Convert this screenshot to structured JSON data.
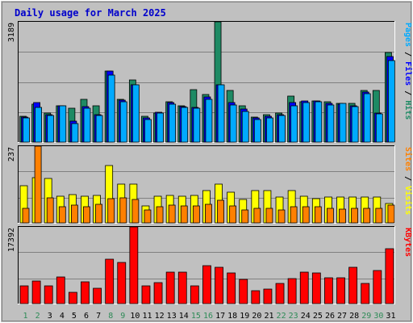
{
  "chart_data": {
    "type": "bar",
    "title": "Daily usage for March 2025",
    "colors": {
      "frame": "#c0c0c0",
      "plot_bg": "#c0c0c0",
      "title": "#0000cc",
      "weekday": "#000000",
      "weekend": "#2e8b57",
      "pages": "#00aaff",
      "files": "#0000ff",
      "hits": "#1e8a64",
      "sites": "#ff8000",
      "visits": "#ffff00",
      "kbytes": "#ff0000"
    },
    "categories": [
      "1",
      "2",
      "3",
      "4",
      "5",
      "6",
      "7",
      "8",
      "9",
      "10",
      "11",
      "12",
      "13",
      "14",
      "15",
      "16",
      "17",
      "18",
      "19",
      "20",
      "21",
      "22",
      "23",
      "24",
      "25",
      "26",
      "27",
      "28",
      "29",
      "30",
      "31"
    ],
    "weekend_days": [
      "1",
      "2",
      "8",
      "9",
      "15",
      "16",
      "22",
      "23",
      "29",
      "30"
    ],
    "panels": [
      {
        "id": "top",
        "ymax": 3189,
        "ymax_label": "3189",
        "axis_labels": [
          {
            "text": "Pages",
            "color": "#00aaff"
          },
          {
            "text": " / ",
            "color": "#000000"
          },
          {
            "text": "Files",
            "color": "#0000ff"
          },
          {
            "text": " / ",
            "color": "#000000"
          },
          {
            "text": "Hits",
            "color": "#1e8a64"
          }
        ],
        "series": [
          {
            "name": "Hits",
            "color": "#1e8a64",
            "values": [
              690,
              1010,
              780,
              970,
              900,
              1140,
              960,
              1880,
              1130,
              1640,
              680,
              780,
              1070,
              960,
              1400,
              1270,
              3189,
              1370,
              970,
              660,
              730,
              780,
              1230,
              1080,
              1100,
              1060,
              1020,
              1030,
              1360,
              1360,
              2370
            ]
          },
          {
            "name": "Files",
            "color": "#0000ff",
            "values": [
              660,
              1040,
              730,
              970,
              560,
              940,
              720,
              1880,
              1120,
              1520,
              640,
              790,
              1050,
              950,
              910,
              1190,
              1530,
              1050,
              870,
              640,
              690,
              730,
              1040,
              1100,
              1090,
              1030,
              1000,
              960,
              1330,
              780,
              2260
            ]
          },
          {
            "name": "Pages",
            "color": "#00aaff",
            "values": [
              640,
              910,
              710,
              960,
              500,
              900,
              700,
              1780,
              1080,
              1530,
              600,
              780,
              1010,
              910,
              890,
              1140,
              1510,
              980,
              810,
              600,
              650,
              700,
              960,
              1050,
              1060,
              980,
              1020,
              950,
              1280,
              750,
              2170
            ]
          }
        ]
      },
      {
        "id": "middle",
        "ymax": 237,
        "ymax_label": "237",
        "axis_labels": [
          {
            "text": "Sites",
            "color": "#ff8000"
          },
          {
            "text": " / ",
            "color": "#000000"
          },
          {
            "text": "Visits",
            "color": "#ffff00"
          }
        ],
        "series": [
          {
            "name": "Visits",
            "color": "#ffff00",
            "values": [
              115,
              140,
              136,
              82,
              88,
              83,
              86,
              178,
              120,
              120,
              52,
              82,
              85,
              82,
              85,
              100,
              120,
              96,
              72,
              100,
              100,
              80,
              100,
              82,
              76,
              80,
              80,
              80,
              80,
              80,
              60
            ]
          },
          {
            "name": "Sites",
            "color": "#ff8000",
            "values": [
              46,
              237,
              78,
              51,
              55,
              50,
              57,
              75,
              77,
              73,
              40,
              50,
              55,
              53,
              53,
              58,
              70,
              52,
              40,
              46,
              46,
              40,
              49,
              51,
              50,
              46,
              42,
              44,
              44,
              44,
              56
            ]
          }
        ]
      },
      {
        "id": "bottom",
        "ymax": 17392,
        "ymax_label": "17392",
        "axis_labels": [
          {
            "text": "KBytes",
            "color": "#ff0000"
          }
        ],
        "series": [
          {
            "name": "KBytes",
            "color": "#ff0000",
            "values": [
              4000,
              5200,
              4000,
              6000,
              2600,
              5000,
              3500,
              10000,
              9300,
              17392,
              4000,
              4700,
              7200,
              7100,
              4000,
              8600,
              8300,
              6900,
              5500,
              3000,
              3300,
              4600,
              5700,
              7100,
              6900,
              5800,
              5900,
              8300,
              4600,
              7500,
              12500
            ]
          }
        ]
      }
    ]
  }
}
